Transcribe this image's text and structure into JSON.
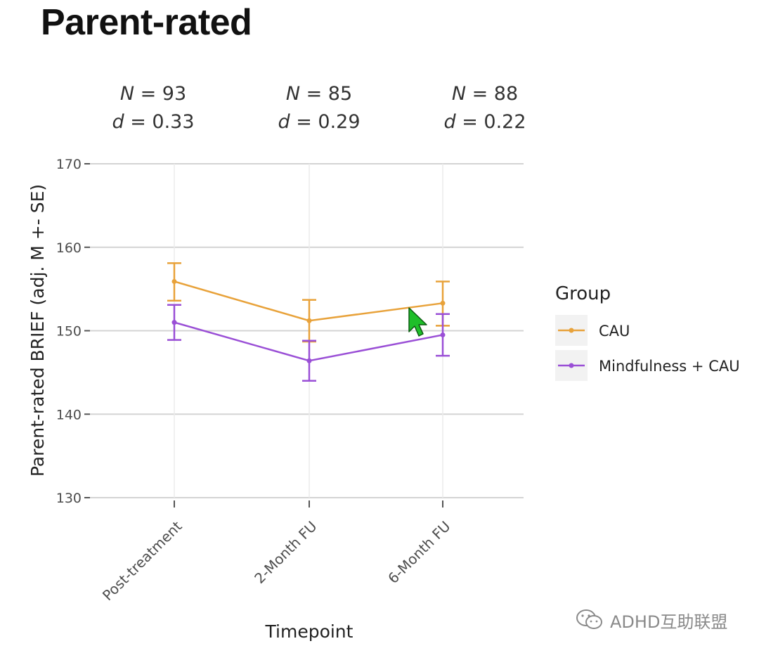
{
  "slide": {
    "title": "Parent-rated"
  },
  "stats": [
    {
      "n_label": "N",
      "n_value": "= 93",
      "d_label": "d",
      "d_value": "= 0.33"
    },
    {
      "n_label": "N",
      "n_value": "= 85",
      "d_label": "d",
      "d_value": "= 0.29"
    },
    {
      "n_label": "N",
      "n_value": "= 88",
      "d_label": "d",
      "d_value": "= 0.22"
    }
  ],
  "chart_data": {
    "type": "line",
    "title": "Parent-rated",
    "xlabel": "Timepoint",
    "ylabel": "Parent-rated BRIEF (adj. M +- SE)",
    "categories": [
      "Post-treatment",
      "2-Month FU",
      "6-Month FU"
    ],
    "ylim": [
      130,
      170
    ],
    "yticks": [
      130,
      140,
      150,
      160,
      170
    ],
    "grid": true,
    "legend": {
      "title": "Group",
      "position": "right"
    },
    "series": [
      {
        "name": "CAU",
        "color": "#e8a23a",
        "values": [
          155.9,
          151.2,
          153.3
        ],
        "se_low": [
          153.6,
          148.7,
          150.6
        ],
        "se_high": [
          158.1,
          153.7,
          155.9
        ]
      },
      {
        "name": "Mindfulness + CAU",
        "color": "#9a4fd6",
        "values": [
          151.0,
          146.4,
          149.5
        ],
        "se_low": [
          148.9,
          144.0,
          147.0
        ],
        "se_high": [
          153.1,
          148.8,
          152.0
        ]
      }
    ]
  },
  "cursor": {
    "icon": "cursor-arrow-icon",
    "color": "#1fbf2a"
  },
  "watermark": {
    "icon": "wechat-icon",
    "text": "ADHD互助联盟"
  }
}
